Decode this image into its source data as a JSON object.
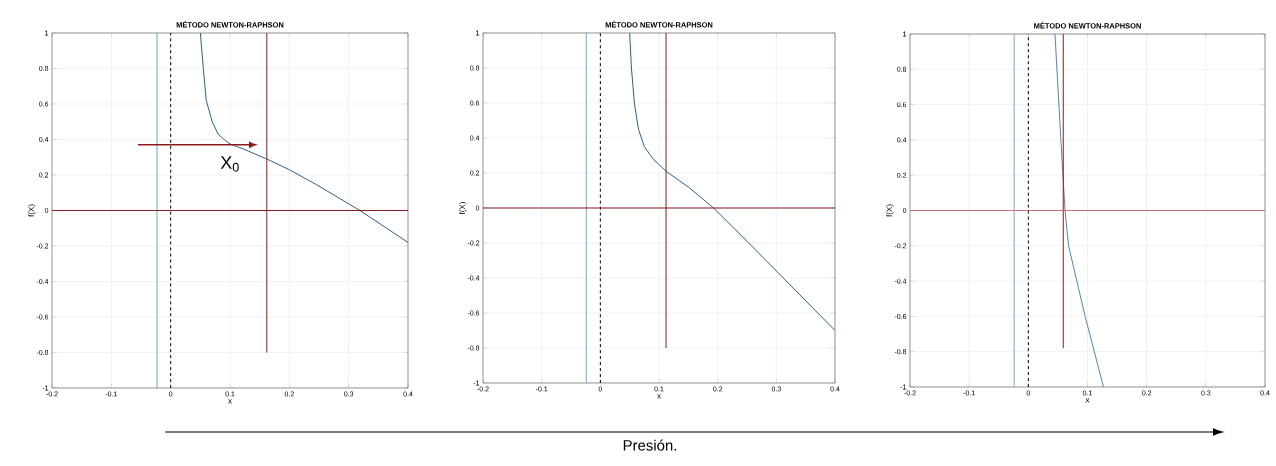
{
  "chart_data": [
    {
      "type": "line",
      "title": "MÉTODO NEWTON-RAPHSON",
      "xlabel": "x",
      "ylabel": "f(X)",
      "xlim": [
        -0.2,
        0.4
      ],
      "xticks": [
        -0.2,
        -0.1,
        0,
        0.1,
        0.2,
        0.3,
        0.4
      ],
      "ylim": [
        -1,
        1
      ],
      "yticks": [
        -1,
        -0.8,
        -0.6,
        -0.4,
        -0.2,
        0,
        0.2,
        0.4,
        0.6,
        0.8,
        1
      ],
      "grid": true,
      "series": [
        {
          "color": "#2e5f8c",
          "x": [
            0.05,
            0.055,
            0.06,
            0.07,
            0.08,
            0.09,
            0.1,
            0.12,
            0.162,
            0.2,
            0.246,
            0.319,
            0.4
          ],
          "values": [
            1,
            0.8,
            0.62,
            0.5,
            0.43,
            0.4,
            0.375,
            0.35,
            0.29,
            0.23,
            0.145,
            0,
            -0.18
          ]
        },
        {
          "color": "#6fa8d6",
          "x": [
            -0.023,
            -0.023
          ],
          "values": [
            1,
            -1
          ]
        },
        {
          "color": "#8b1a1a",
          "x": [
            0.162,
            0.162
          ],
          "values": [
            1,
            -0.8
          ]
        }
      ],
      "ref_lines": [
        {
          "axis": "x",
          "value": 0,
          "color": "#000000",
          "line_style": "dashed"
        },
        {
          "axis": "y",
          "value": 0,
          "color": "#8b1a1a",
          "line_style": "solid"
        }
      ],
      "annotations": [
        {
          "text": "X$_{0}$",
          "x": 0.1,
          "y": 0.37
        }
      ]
    },
    {
      "type": "line",
      "title": "MÉTODO NEWTON-RAPHSON",
      "xlabel": "x",
      "ylabel": "f(X)",
      "xlim": [
        -0.2,
        0.4
      ],
      "xticks": [
        -0.2,
        -0.1,
        0,
        0.1,
        0.2,
        0.3,
        0.4
      ],
      "ylim": [
        -1,
        1
      ],
      "yticks": [
        -1,
        -0.8,
        -0.6,
        -0.4,
        -0.2,
        0,
        0.2,
        0.4,
        0.6,
        0.8,
        1
      ],
      "grid": true,
      "series": [
        {
          "color": "#2e5f8c",
          "x": [
            0.05,
            0.053,
            0.058,
            0.065,
            0.075,
            0.09,
            0.112,
            0.15,
            0.193,
            0.25,
            0.3,
            0.35,
            0.4
          ],
          "values": [
            1,
            0.8,
            0.6,
            0.45,
            0.35,
            0.28,
            0.21,
            0.12,
            0,
            -0.19,
            -0.36,
            -0.53,
            -0.7
          ]
        },
        {
          "color": "#6fa8d6",
          "x": [
            -0.024,
            -0.024
          ],
          "values": [
            1,
            -1
          ]
        },
        {
          "color": "#8b1a1a",
          "x": [
            0.112,
            0.112
          ],
          "values": [
            1,
            -0.8
          ]
        }
      ],
      "ref_lines": [
        {
          "axis": "x",
          "value": 0,
          "color": "#000000",
          "line_style": "dashed"
        },
        {
          "axis": "y",
          "value": 0,
          "color": "#8b1a1a",
          "line_style": "solid"
        }
      ],
      "annotations": [
        "Presión."
      ]
    },
    {
      "type": "line",
      "title": "MÉTODO NEWTON-RAPHSON",
      "xlabel": "x",
      "ylabel": "f(X)",
      "xlim": [
        -0.2,
        0.4
      ],
      "xticks": [
        -0.2,
        -0.1,
        0,
        0.1,
        0.2,
        0.3,
        0.4
      ],
      "ylim": [
        -1,
        1
      ],
      "yticks": [
        -1,
        -0.8,
        -0.6,
        -0.4,
        -0.2,
        0,
        0.2,
        0.4,
        0.6,
        0.8,
        1
      ],
      "grid": true,
      "series": [
        {
          "color": "#4f86b8",
          "x": [
            0.045,
            0.05,
            0.055,
            0.062,
            0.068,
            0.082,
            0.096,
            0.127
          ],
          "values": [
            1,
            0.7,
            0.4,
            0,
            -0.2,
            -0.4,
            -0.6,
            -1
          ]
        },
        {
          "color": "#6fa8d6",
          "x": [
            -0.024,
            -0.024
          ],
          "values": [
            1,
            -1
          ]
        },
        {
          "color": "#8b1a1a",
          "x": [
            0.059,
            0.059
          ],
          "values": [
            1,
            -0.78
          ]
        }
      ],
      "ref_lines": [
        {
          "axis": "x",
          "value": 0,
          "color": "#000000",
          "line_style": "dashed"
        },
        {
          "axis": "y",
          "value": 0,
          "color": "#c87070",
          "line_style": "solid"
        }
      ]
    }
  ]
}
